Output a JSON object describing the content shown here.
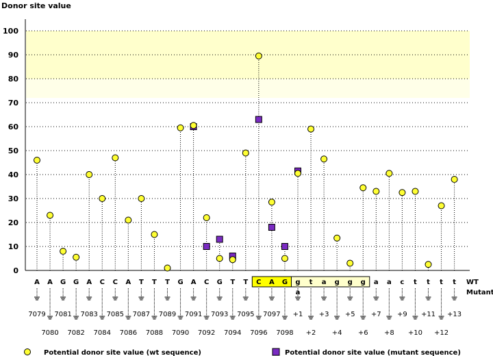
{
  "chart_data": {
    "type": "scatter",
    "title": "",
    "ylabel": "Donor site value",
    "xlabel": "",
    "ylim": [
      0,
      100
    ],
    "yticks": [
      0,
      10,
      20,
      30,
      40,
      50,
      60,
      70,
      80,
      90,
      100
    ],
    "grid": "horizontal dotted",
    "highlight_bands": [
      {
        "from": 80,
        "to": 100,
        "color": "#ffffcc"
      },
      {
        "from": 72,
        "to": 80,
        "color": "#ffffe8"
      }
    ],
    "row_labels": {
      "wt": "WT",
      "mutant": "Mutant"
    },
    "positions": [
      "7079",
      "7080",
      "7081",
      "7082",
      "7083",
      "7084",
      "7085",
      "7086",
      "7087",
      "7088",
      "7089",
      "7090",
      "7091",
      "7092",
      "7093",
      "7094",
      "7095",
      "7096",
      "7097",
      "7098",
      "+1",
      "+2",
      "+3",
      "+4",
      "+5",
      "+6",
      "+7",
      "+8",
      "+9",
      "+10",
      "+11",
      "+12",
      "+13"
    ],
    "wt_sequence": [
      "A",
      "A",
      "G",
      "G",
      "A",
      "C",
      "C",
      "A",
      "T",
      "T",
      "T",
      "G",
      "A",
      "C",
      "G",
      "T",
      "T",
      "C",
      "A",
      "G",
      "g",
      "t",
      "a",
      "g",
      "g",
      "g",
      "a",
      "a",
      "c",
      "t",
      "t",
      "t",
      "t"
    ],
    "mutant_sequence": [
      "",
      "",
      "",
      "",
      "",
      "",
      "",
      "",
      "",
      "",
      "",
      "",
      "",
      "",
      "",
      "",
      "",
      "",
      "",
      "",
      "a",
      "",
      "",
      "",
      "",
      "",
      "",
      "",
      "",
      "",
      "",
      "",
      ""
    ],
    "exon_box": {
      "start": 17,
      "end": 19,
      "fill": "#ffff00"
    },
    "intron_box": {
      "start": 20,
      "end": 25,
      "fill": "#ffffcc"
    },
    "series": [
      {
        "name": "Potential donor site value (wt sequence)",
        "marker": "circle",
        "color": "#ffff33",
        "values": [
          46,
          23,
          8,
          5.5,
          40,
          30,
          47,
          21,
          30,
          15,
          1,
          59.5,
          60.5,
          22,
          5,
          4.5,
          49,
          89.5,
          28.5,
          5,
          40.5,
          59,
          46.5,
          13.5,
          3,
          34.5,
          33,
          40.5,
          32.5,
          33,
          2.5,
          27,
          38
        ]
      },
      {
        "name": "Potential donor site value (mutant sequence)",
        "marker": "square",
        "color": "#7a2bc2",
        "values": [
          null,
          null,
          null,
          null,
          null,
          null,
          null,
          null,
          null,
          null,
          null,
          null,
          60,
          10,
          13,
          6,
          null,
          63,
          18,
          10,
          41.5,
          null,
          null,
          null,
          null,
          null,
          null,
          null,
          null,
          null,
          null,
          null,
          null
        ]
      }
    ]
  }
}
